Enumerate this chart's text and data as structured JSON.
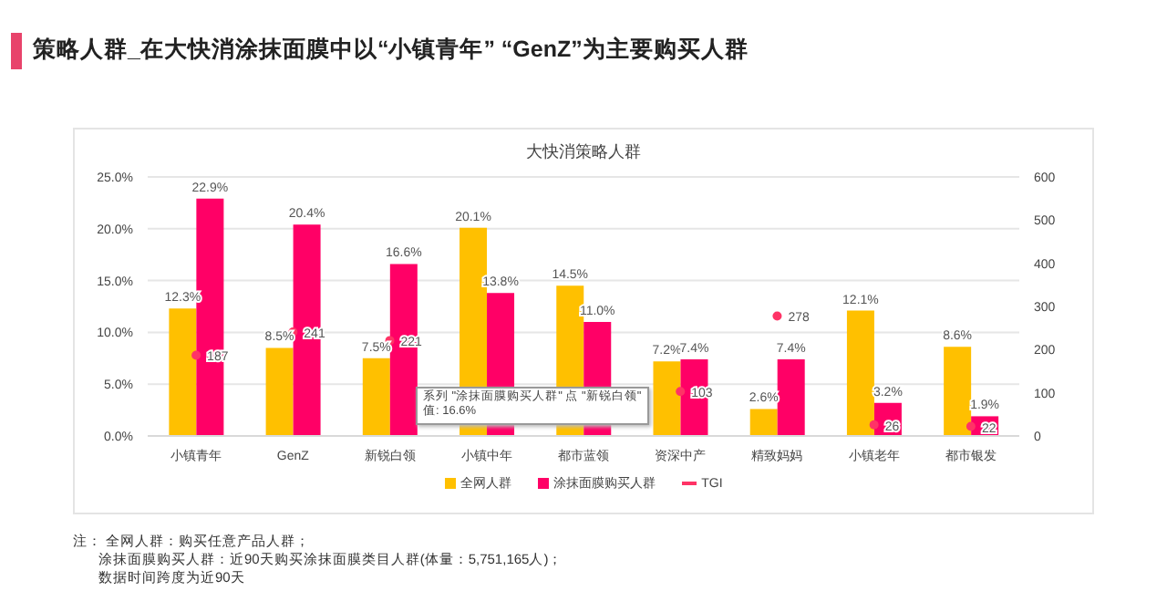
{
  "chart_data": {
    "type": "bar",
    "title": "策略人群_在大快消涂抹面膜中以“小镇青年” “GenZ”为主要购买人群",
    "subtitle": "大快消策略人群",
    "categories": [
      "小镇青年",
      "GenZ",
      "新锐白领",
      "小镇中年",
      "都市蓝领",
      "资深中产",
      "精致妈妈",
      "小镇老年",
      "都市银发"
    ],
    "series": [
      {
        "name": "全网人群",
        "color": "#ffc000",
        "values": [
          12.3,
          8.5,
          7.5,
          20.1,
          14.5,
          7.2,
          2.6,
          12.1,
          8.6
        ],
        "value_labels": [
          "12.3%",
          "8.5%",
          "7.5%",
          "20.1%",
          "14.5%",
          "7.2%",
          "2.6%",
          "12.1%",
          "8.6%"
        ]
      },
      {
        "name": "涂抹面膜购买人群",
        "color": "#ff0066",
        "values": [
          22.9,
          20.4,
          16.6,
          13.8,
          11.0,
          7.4,
          7.4,
          3.2,
          1.9
        ],
        "value_labels": [
          "22.9%",
          "20.4%",
          "16.6%",
          "13.8%",
          "11.0%",
          "7.4%",
          "7.4%",
          "3.2%",
          "1.9%"
        ]
      },
      {
        "name": "TGI",
        "type": "scatter",
        "axis": "y2",
        "color": "#ff3366",
        "values": [
          187,
          241,
          221,
          null,
          null,
          103,
          278,
          26,
          22
        ],
        "value_labels": [
          "187",
          "241",
          "221",
          null,
          null,
          "103",
          "278",
          "26",
          "22"
        ]
      }
    ],
    "ylim": [
      0,
      25
    ],
    "yticks": [
      {
        "value": 0,
        "label": "0.0%"
      },
      {
        "value": 5,
        "label": "5.0%"
      },
      {
        "value": 10,
        "label": "10.0%"
      },
      {
        "value": 15,
        "label": "15.0%"
      },
      {
        "value": 20,
        "label": "20.0%"
      },
      {
        "value": 25,
        "label": "25.0%"
      }
    ],
    "y2lim": [
      0,
      600
    ],
    "y2ticks": [
      0,
      100,
      200,
      300,
      400,
      500,
      600
    ],
    "grid": "y",
    "legend": "bottom",
    "annotations": [
      "系列 \"涂抹面膜购买人群\" 点 \"新锐白领\"\n值: 16.6%",
      "注：  全网人群：购买任意产品人群；",
      "涂抹面膜购买人群：近90天购买涂抹面膜类目人群(体量：5,751,165人)；",
      "数据时间跨度为近90天"
    ]
  }
}
